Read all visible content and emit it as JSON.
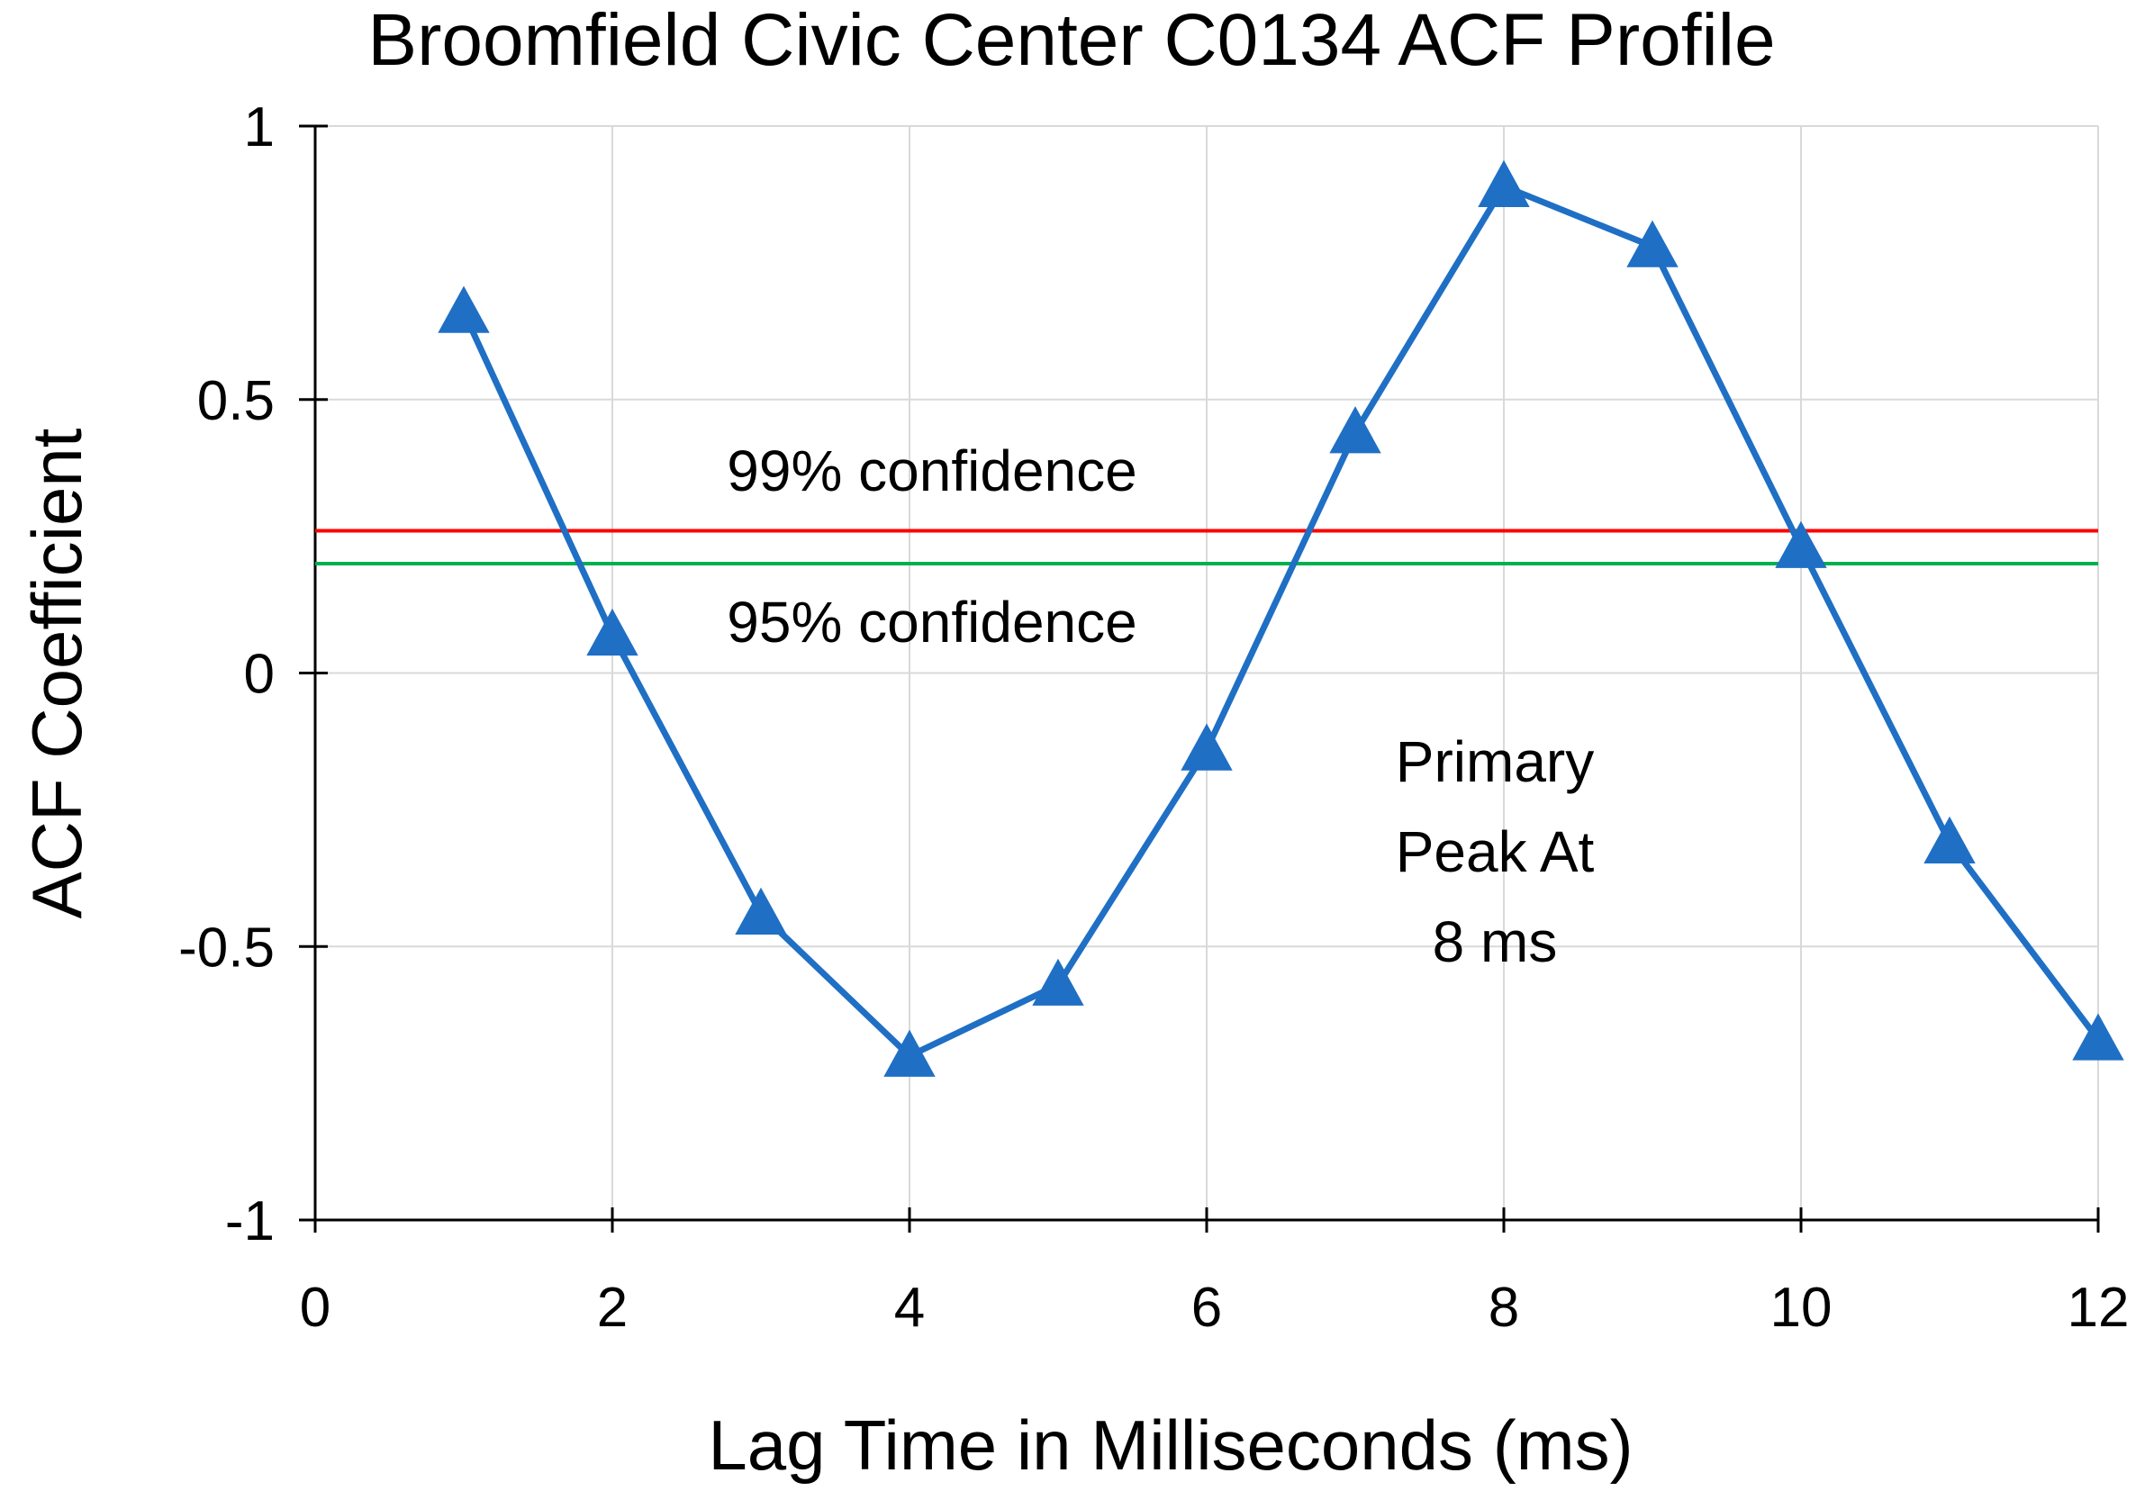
{
  "chart_data": {
    "type": "line",
    "title": "Broomfield Civic Center C0134 ACF Profile",
    "xlabel": "Lag Time in Milliseconds (ms)",
    "ylabel": "ACF Coefficient",
    "xlim": [
      0,
      12
    ],
    "ylim": [
      -1,
      1
    ],
    "xticks": [
      0,
      2,
      4,
      6,
      8,
      10,
      12
    ],
    "yticks": [
      -1,
      -0.5,
      0,
      0.5,
      1
    ],
    "xtick_labels": [
      "0",
      "2",
      "4",
      "6",
      "8",
      "10",
      "12"
    ],
    "ytick_labels": [
      "-1",
      "-0.5",
      "0",
      "0.5",
      "1"
    ],
    "grid": true,
    "series": [
      {
        "color": "#1f6fc5",
        "marker": "triangle",
        "x": [
          1,
          2,
          3,
          4,
          5,
          6,
          7,
          8,
          9,
          10,
          11,
          12
        ],
        "values": [
          0.66,
          0.07,
          -0.44,
          -0.7,
          -0.57,
          -0.14,
          0.44,
          0.89,
          0.78,
          0.23,
          -0.31,
          -0.67
        ]
      }
    ],
    "reference_lines": [
      {
        "label": "99% confidence",
        "y": 0.26,
        "color": "#ff0000"
      },
      {
        "label": "95% confidence",
        "y": 0.2,
        "color": "#00b050"
      }
    ],
    "annotations": [
      {
        "text_lines": [
          "Primary",
          "Peak At",
          "8 ms"
        ]
      }
    ]
  }
}
